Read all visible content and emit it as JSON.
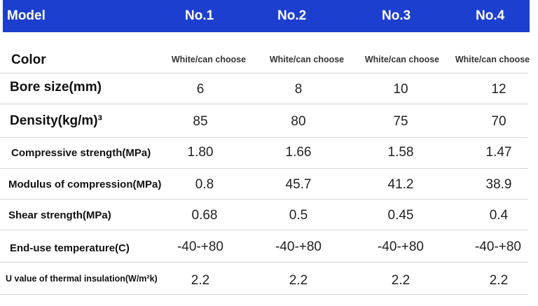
{
  "header": {
    "label": "Model",
    "columns": [
      "No.1",
      "No.2",
      "No.3",
      "No.4"
    ]
  },
  "rows": [
    {
      "label": "Color",
      "values": [
        "White/can choose",
        "White/can choose",
        "White/can choose",
        "White/can choose"
      ]
    },
    {
      "label": "Bore size(mm)",
      "values": [
        "6",
        "8",
        "10",
        "12"
      ]
    },
    {
      "label": "Density(kg/m)³",
      "values": [
        "85",
        "80",
        "75",
        "70"
      ]
    },
    {
      "label": "Compressive strength(MPa)",
      "values": [
        "1.80",
        "1.66",
        "1.58",
        "1.47"
      ]
    },
    {
      "label": "Modulus of compression(MPa)",
      "values": [
        "0.8",
        "45.7",
        "41.2",
        "38.9"
      ]
    },
    {
      "label": "Shear strength(MPa)",
      "values": [
        "0.68",
        "0.5",
        "0.45",
        "0.4"
      ]
    },
    {
      "label": "End-use temperature(C)",
      "values": [
        "-40-+80",
        "-40-+80",
        "-40-+80",
        "-40-+80"
      ]
    },
    {
      "label": "U value of thermal insulation(W/m²k)",
      "values": [
        "2.2",
        "2.2",
        "2.2",
        "2.2"
      ]
    }
  ],
  "colors": {
    "header_bg": "#1d3fcf",
    "header_text": "#ffffff",
    "separator": "#d6d6d6"
  }
}
